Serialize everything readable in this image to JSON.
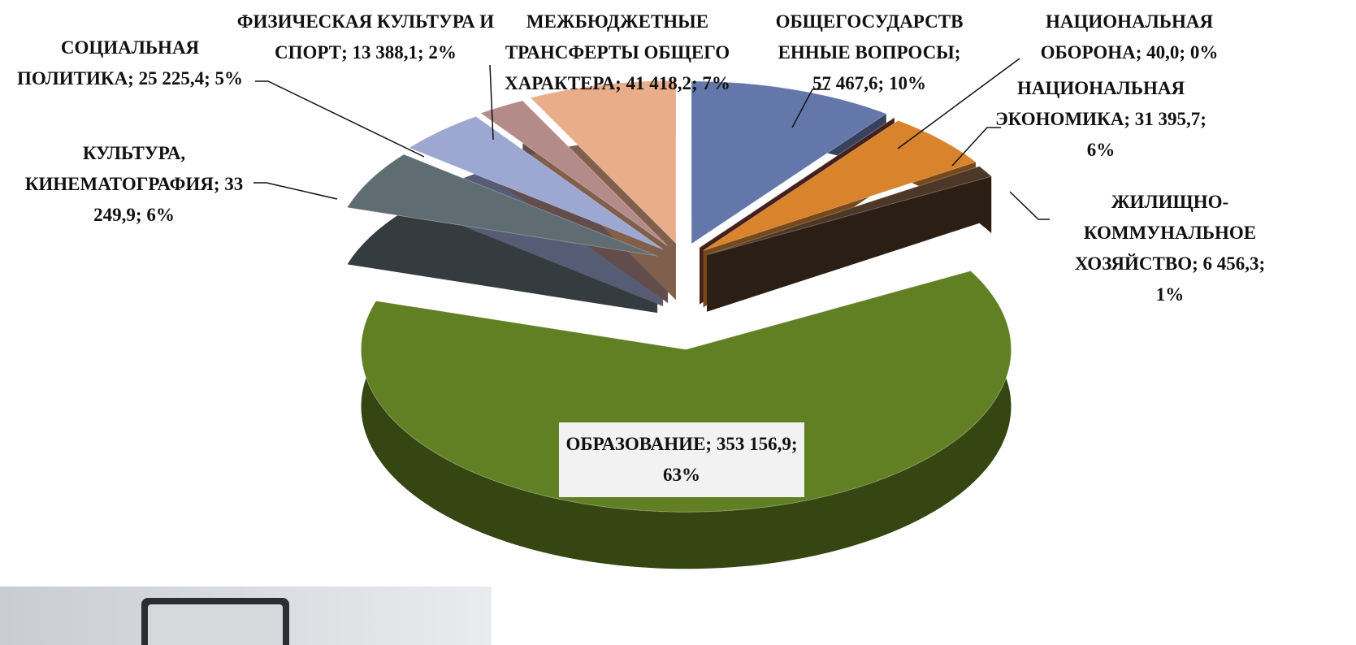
{
  "chart_data": {
    "type": "pie",
    "values": [
      57467.6,
      40.0,
      31395.7,
      6456.3,
      353156.9,
      33249.9,
      25225.4,
      13388.1,
      41418.2
    ],
    "value_labels": [
      "ОБЩЕГОСУДАРСТВЕННЫЕ ВОПРОСЫ; 57 467,6; 10%",
      "НАЦИОНАЛЬНАЯ ОБОРОНА; 40,0; 0%",
      "НАЦИОНАЛЬНАЯ ЭКОНОМИКА; 31 395,7; 6%",
      "ЖИЛИЩНО-КОММУНАЛЬНОЕ ХОЗЯЙСТВО; 6 456,3; 1%",
      "ОБРАЗОВАНИЕ; 353 156,9; 63%",
      "КУЛЬТУРА, КИНЕМАТОГРАФИЯ; 33 249,9; 6%",
      "СОЦИАЛЬНАЯ ПОЛИТИКА; 25 225,4; 5%",
      "ФИЗИЧЕСКАЯ КУЛЬТУРА И СПОРТ; 13 388,1; 2%",
      "МЕЖБЮДЖЕТНЫЕ ТРАНСФЕРТЫ ОБЩЕГО ХАРАКТЕРА; 41 418,2; 7%"
    ],
    "colors": [
      "#6377aa",
      "#7d3b2f",
      "#d9832c",
      "#4d3727",
      "#617f23",
      "#5f6d72",
      "#9ca8d2",
      "#b38c8a",
      "#e9ad8a"
    ]
  }
}
